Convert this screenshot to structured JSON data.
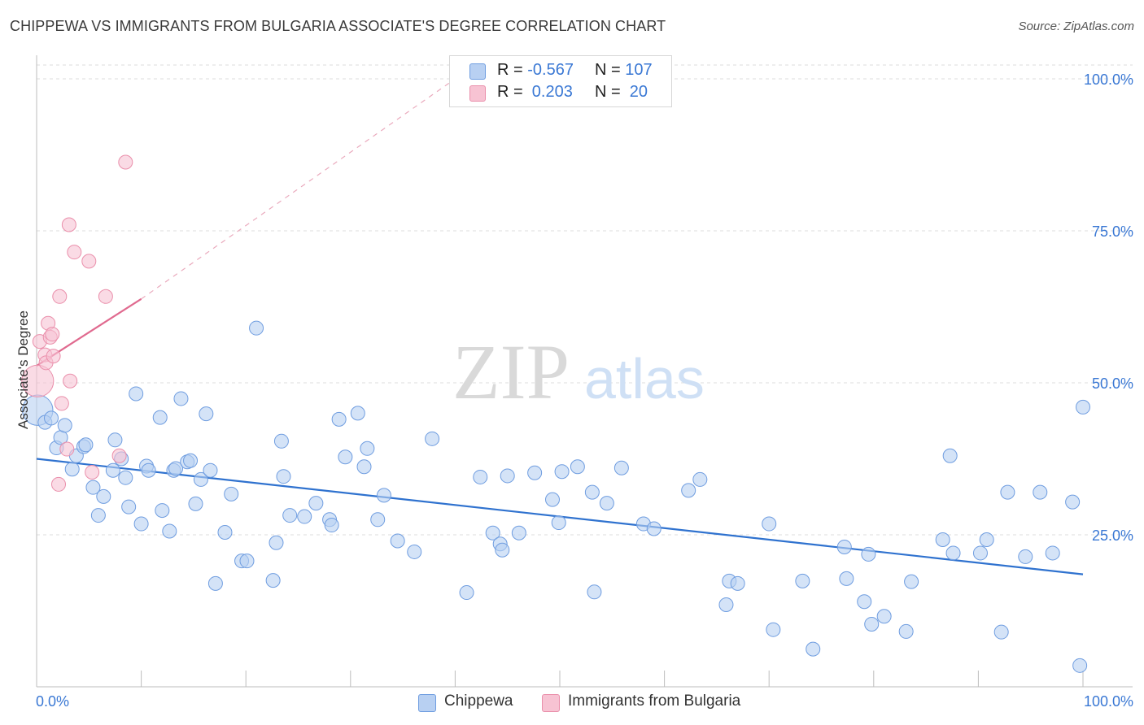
{
  "title": "CHIPPEWA VS IMMIGRANTS FROM BULGARIA ASSOCIATE'S DEGREE CORRELATION CHART",
  "source": "Source: ZipAtlas.com",
  "watermark": {
    "zip": "ZIP",
    "atlas": "atlas"
  },
  "legend_top": {
    "series1": {
      "r_label": "R = ",
      "r_value": "-0.567",
      "n_label": "N = ",
      "n_value": "107"
    },
    "series2": {
      "r_label": "R = ",
      "r_value": " 0.203",
      "n_label": "N = ",
      "n_value": " 20"
    }
  },
  "colors": {
    "blue_fill": "#b8d0f2",
    "blue_stroke": "#6f9de0",
    "blue_line": "#2f72cf",
    "pink_fill": "#f7c3d3",
    "pink_stroke": "#ea8fab",
    "pink_line": "#e06a8f",
    "axis_label": "#3a78d4"
  },
  "chart_data": {
    "type": "scatter",
    "title": "CHIPPEWA VS IMMIGRANTS FROM BULGARIA ASSOCIATE'S DEGREE CORRELATION CHART",
    "xlabel": "",
    "ylabel": "Associate's Degree",
    "xlim": [
      0,
      100
    ],
    "ylim": [
      0,
      100
    ],
    "x_tick_labels": [
      "0.0%",
      "100.0%"
    ],
    "y_ticks": [
      25,
      50,
      75,
      100
    ],
    "y_tick_labels": [
      "25.0%",
      "50.0%",
      "75.0%",
      "100.0%"
    ],
    "grid": "horizontal dashed",
    "legend": "bottom-center",
    "series": [
      {
        "name": "Chippewa",
        "R": -0.567,
        "N": 107,
        "trend": {
          "x": [
            0,
            100
          ],
          "y": [
            37.5,
            18.5
          ]
        },
        "points": [
          [
            0.1,
            45.5,
            2.2
          ],
          [
            0.8,
            43.5,
            1
          ],
          [
            1.4,
            44.2,
            1
          ],
          [
            1.9,
            39.3,
            1
          ],
          [
            2.3,
            41,
            1
          ],
          [
            2.7,
            43,
            1
          ],
          [
            3.4,
            35.8,
            1
          ],
          [
            3.8,
            38,
            1
          ],
          [
            4.5,
            39.5,
            1
          ],
          [
            4.7,
            39.8,
            1
          ],
          [
            5.4,
            32.8,
            1
          ],
          [
            5.9,
            28.2,
            1
          ],
          [
            6.4,
            31.3,
            1
          ],
          [
            7.3,
            35.6,
            1
          ],
          [
            7.5,
            40.6,
            1
          ],
          [
            8.1,
            37.5,
            1
          ],
          [
            8.5,
            34.4,
            1
          ],
          [
            8.8,
            29.6,
            1
          ],
          [
            9.5,
            48.2,
            1
          ],
          [
            10,
            26.8,
            1
          ],
          [
            10.5,
            36.3,
            1
          ],
          [
            10.7,
            35.6,
            1
          ],
          [
            11.8,
            44.3,
            1
          ],
          [
            12,
            29,
            1
          ],
          [
            12.7,
            25.6,
            1
          ],
          [
            13.1,
            35.6,
            1
          ],
          [
            13.3,
            35.9,
            1
          ],
          [
            13.8,
            47.4,
            1
          ],
          [
            14.4,
            37,
            1
          ],
          [
            14.7,
            37.2,
            1
          ],
          [
            15.2,
            30.1,
            1
          ],
          [
            15.7,
            34.1,
            1
          ],
          [
            16.2,
            44.9,
            1
          ],
          [
            16.6,
            35.6,
            1
          ],
          [
            17.1,
            17,
            1
          ],
          [
            18,
            25.4,
            1
          ],
          [
            18.6,
            31.7,
            1
          ],
          [
            19.6,
            20.7,
            1
          ],
          [
            20.1,
            20.7,
            1
          ],
          [
            21,
            59,
            1
          ],
          [
            22.6,
            17.5,
            1
          ],
          [
            22.9,
            23.7,
            1
          ],
          [
            23.4,
            40.4,
            1
          ],
          [
            23.6,
            34.6,
            1
          ],
          [
            24.2,
            28.2,
            1
          ],
          [
            25.6,
            28,
            1
          ],
          [
            26.7,
            30.2,
            1
          ],
          [
            28,
            27.5,
            1
          ],
          [
            28.2,
            26.6,
            1
          ],
          [
            28.9,
            44,
            1
          ],
          [
            29.5,
            37.8,
            1
          ],
          [
            30.7,
            45,
            1
          ],
          [
            31.3,
            36.2,
            1
          ],
          [
            31.6,
            39.2,
            1
          ],
          [
            32.6,
            27.5,
            1
          ],
          [
            33.2,
            31.5,
            1
          ],
          [
            34.5,
            24,
            1
          ],
          [
            36.1,
            22.2,
            1
          ],
          [
            37.8,
            40.8,
            1
          ],
          [
            41.1,
            15.5,
            1
          ],
          [
            42.4,
            34.5,
            1
          ],
          [
            43.6,
            25.3,
            1
          ],
          [
            44.3,
            23.5,
            1
          ],
          [
            44.5,
            22.5,
            1
          ],
          [
            45,
            34.7,
            1
          ],
          [
            46.1,
            25.3,
            1
          ],
          [
            47.6,
            35.2,
            1
          ],
          [
            49.3,
            30.8,
            1
          ],
          [
            49.9,
            27,
            1
          ],
          [
            50.2,
            35.4,
            1
          ],
          [
            51.7,
            36.2,
            1
          ],
          [
            53.1,
            32,
            1
          ],
          [
            53.3,
            15.6,
            1
          ],
          [
            54.5,
            30.2,
            1
          ],
          [
            55.9,
            36,
            1
          ],
          [
            58,
            26.8,
            1
          ],
          [
            59,
            26,
            1
          ],
          [
            62.3,
            32.3,
            1
          ],
          [
            63.4,
            34.1,
            1
          ],
          [
            65.9,
            13.5,
            1
          ],
          [
            66.2,
            17.4,
            1
          ],
          [
            67,
            17,
            1
          ],
          [
            70,
            26.8,
            1
          ],
          [
            70.4,
            9.4,
            1
          ],
          [
            73.2,
            17.4,
            1
          ],
          [
            74.2,
            6.2,
            1
          ],
          [
            77.2,
            23,
            1
          ],
          [
            77.4,
            17.8,
            1
          ],
          [
            79.1,
            14,
            1
          ],
          [
            79.5,
            21.8,
            1
          ],
          [
            79.8,
            10.3,
            1
          ],
          [
            81,
            11.6,
            1
          ],
          [
            83.1,
            9.1,
            1
          ],
          [
            83.6,
            17.3,
            1
          ],
          [
            86.6,
            24.2,
            1
          ],
          [
            87.3,
            38,
            1
          ],
          [
            87.6,
            22,
            1
          ],
          [
            90.2,
            22,
            1
          ],
          [
            90.8,
            24.2,
            1
          ],
          [
            92.2,
            9,
            1
          ],
          [
            92.8,
            32,
            1
          ],
          [
            94.5,
            21.4,
            1
          ],
          [
            95.9,
            32,
            1
          ],
          [
            97.1,
            22,
            1
          ],
          [
            99,
            30.4,
            1
          ],
          [
            99.7,
            3.5,
            1
          ],
          [
            100,
            46,
            1
          ]
        ]
      },
      {
        "name": "Immigrants from Bulgaria",
        "R": 0.203,
        "N": 20,
        "trend": {
          "x": [
            0,
            10
          ],
          "y": [
            52.8,
            63.8
          ]
        },
        "trend_extended": {
          "x": [
            10,
            40
          ],
          "y": [
            63.8,
            100
          ]
        },
        "points": [
          [
            0.1,
            50.3,
            2.3
          ],
          [
            0.3,
            56.8,
            1
          ],
          [
            0.8,
            54.6,
            1
          ],
          [
            0.9,
            53.3,
            1
          ],
          [
            1.1,
            59.8,
            1
          ],
          [
            1.3,
            57.5,
            1
          ],
          [
            1.5,
            58,
            1
          ],
          [
            1.6,
            54.4,
            1
          ],
          [
            2.1,
            33.3,
            1
          ],
          [
            2.2,
            64.2,
            1
          ],
          [
            2.4,
            46.6,
            1
          ],
          [
            2.9,
            39.1,
            1
          ],
          [
            3.1,
            76,
            1
          ],
          [
            3.2,
            50.3,
            1
          ],
          [
            3.6,
            71.5,
            1
          ],
          [
            5,
            70,
            1
          ],
          [
            5.3,
            35.3,
            1
          ],
          [
            6.6,
            64.2,
            1
          ],
          [
            7.9,
            38,
            1
          ],
          [
            8.5,
            86.3,
            1
          ]
        ]
      }
    ]
  },
  "bottom_legend": [
    {
      "label": "Chippewa"
    },
    {
      "label": "Immigrants from Bulgaria"
    }
  ]
}
